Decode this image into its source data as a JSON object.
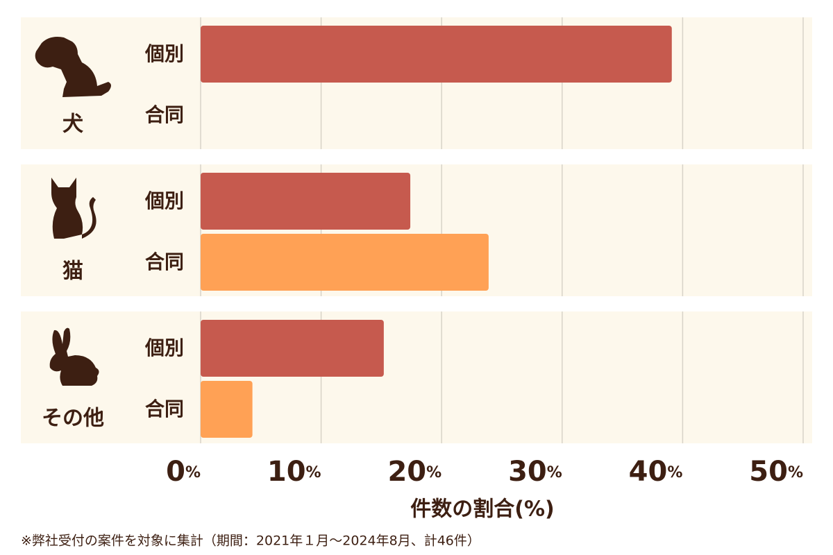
{
  "chart_data": {
    "type": "bar",
    "orientation": "horizontal",
    "categories": [
      "犬",
      "猫",
      "その他"
    ],
    "series": [
      {
        "name": "個別",
        "color": "#c65a4e",
        "values": [
          39.1,
          17.4,
          15.2
        ]
      },
      {
        "name": "合同",
        "color": "#ffa155",
        "values": [
          0,
          23.9,
          4.3
        ]
      }
    ],
    "xlabel": "件数の割合(%)",
    "xlim": [
      0,
      50
    ],
    "xticks": [
      {
        "value": 0,
        "label": "0%"
      },
      {
        "value": 10,
        "label": "10%"
      },
      {
        "value": 20,
        "label": "20%"
      },
      {
        "value": 30,
        "label": "30%"
      },
      {
        "value": 40,
        "label": "40%"
      },
      {
        "value": 50,
        "label": "50%"
      }
    ],
    "grid": true,
    "footnote": "※弊社受付の案件を対象に集計（期間：2021年１月〜2024年8月、計46件）"
  }
}
